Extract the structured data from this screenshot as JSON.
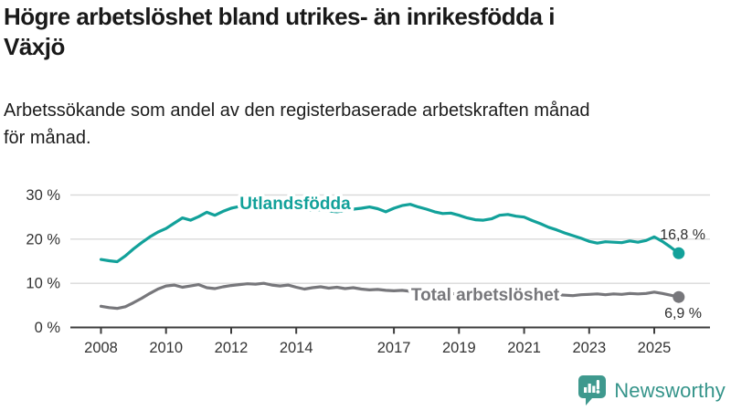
{
  "header": {
    "title_line1": "Högre arbetslöshet bland utrikes- än inrikesfödda i",
    "title_line2": "Växjö",
    "subtitle_line1": "Arbetssökande som andel av den registerbaserade arbetskraften månad",
    "subtitle_line2": "för månad."
  },
  "chart_data": {
    "type": "line",
    "title": "Högre arbetslöshet bland utrikes- än inrikesfödda i Växjö",
    "subtitle": "Arbetssökande som andel av den registerbaserade arbetskraften månad för månad.",
    "x_unit": "year (monthly data shown quarterly)",
    "x_start": 2008,
    "x_step": 0.25,
    "xlim": [
      2008,
      2026
    ],
    "ylim": [
      0,
      32
    ],
    "grid": true,
    "x_tick_years": [
      2008,
      2010,
      2012,
      2014,
      2017,
      2019,
      2021,
      2023,
      2025
    ],
    "x_tick_labels": [
      "2008",
      "2010",
      "2012",
      "2014",
      "2017",
      "2019",
      "2021",
      "2023",
      "2025"
    ],
    "y_ticks": [
      0,
      10,
      20,
      30
    ],
    "y_tick_labels": [
      "0 %",
      "10 %",
      "20 %",
      "30 %"
    ],
    "series": [
      {
        "name": "Utlandsfödda",
        "color": "#12a19a",
        "end_label": "16,8 %",
        "end_value": 16.8,
        "values": [
          15.4,
          15.1,
          14.9,
          16.2,
          17.8,
          19.2,
          20.5,
          21.6,
          22.4,
          23.6,
          24.8,
          24.3,
          25.1,
          26.1,
          25.4,
          26.3,
          27.0,
          27.4,
          27.2,
          27.7,
          27.9,
          28.1,
          27.6,
          27.3,
          27.1,
          26.8,
          26.5,
          26.7,
          26.4,
          26.2,
          26.5,
          26.8,
          27.0,
          27.3,
          26.9,
          26.2,
          27.0,
          27.6,
          27.9,
          27.3,
          26.8,
          26.2,
          25.8,
          25.9,
          25.4,
          24.8,
          24.4,
          24.3,
          24.6,
          25.4,
          25.6,
          25.2,
          25.0,
          24.2,
          23.5,
          22.7,
          22.1,
          21.4,
          20.8,
          20.2,
          19.5,
          19.1,
          19.4,
          19.3,
          19.2,
          19.6,
          19.3,
          19.7,
          20.5,
          19.5,
          18.2,
          16.8
        ]
      },
      {
        "name": "Total arbetslöshet",
        "color": "#77777b",
        "end_label": "6,9 %",
        "end_value": 6.9,
        "values": [
          4.8,
          4.5,
          4.3,
          4.7,
          5.6,
          6.6,
          7.7,
          8.7,
          9.4,
          9.6,
          9.1,
          9.4,
          9.7,
          9.0,
          8.8,
          9.2,
          9.5,
          9.7,
          9.9,
          9.8,
          10.0,
          9.6,
          9.4,
          9.6,
          9.1,
          8.7,
          9.0,
          9.2,
          8.9,
          9.1,
          8.8,
          9.0,
          8.7,
          8.5,
          8.6,
          8.4,
          8.3,
          8.4,
          8.2,
          8.1,
          7.9,
          7.7,
          7.6,
          7.7,
          7.5,
          7.4,
          7.3,
          7.4,
          7.6,
          8.4,
          8.6,
          8.4,
          8.1,
          7.9,
          7.7,
          7.5,
          7.4,
          7.3,
          7.2,
          7.4,
          7.5,
          7.6,
          7.4,
          7.6,
          7.5,
          7.7,
          7.6,
          7.7,
          8.0,
          7.7,
          7.3,
          6.9
        ]
      }
    ],
    "legend_position": "inline-labels"
  },
  "branding": {
    "logo_text": "Newsworthy",
    "logo_icon": "bar-chart-speech-bubble-icon",
    "logo_color": "#3f998e"
  }
}
